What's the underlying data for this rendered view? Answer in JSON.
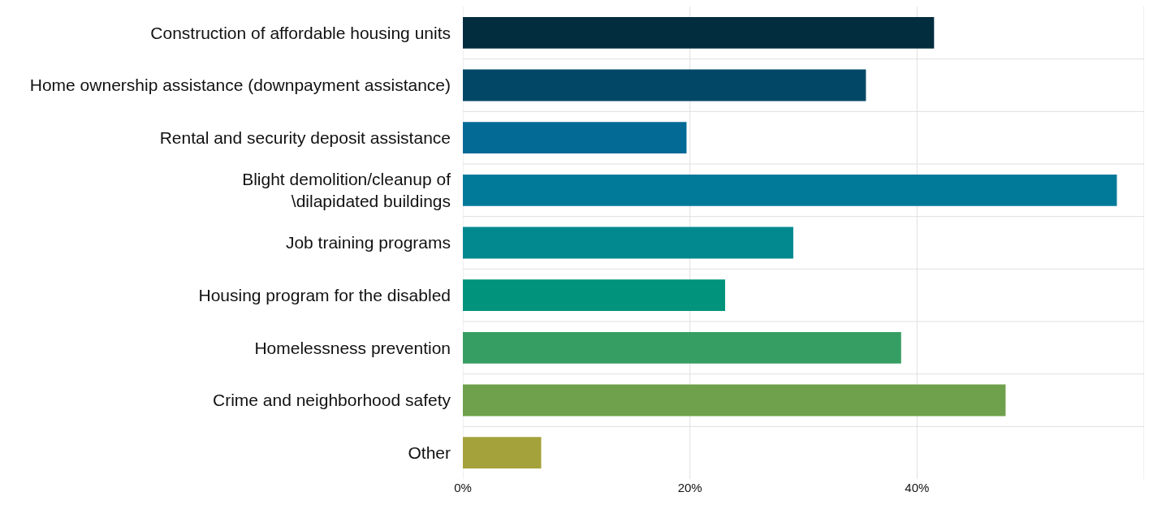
{
  "chart_data": {
    "type": "bar",
    "orientation": "horizontal",
    "categories": [
      "Construction of affordable housing units",
      "Home ownership assistance (downpayment assistance)",
      "Rental and security deposit assistance",
      "Blight demolition/cleanup of\n\\dilapidated buildings",
      "Job training programs",
      "Housing program for the disabled",
      "Homelessness prevention",
      "Crime and neighborhood safety",
      "Other"
    ],
    "values": [
      41.5,
      35.5,
      19.7,
      57.6,
      29.1,
      23.1,
      38.6,
      47.8,
      6.9
    ],
    "colors": [
      "#022d3f",
      "#024866",
      "#036a96",
      "#017a9a",
      "#01898f",
      "#01937c",
      "#379e63",
      "#6fa04b",
      "#a4a23a"
    ],
    "xlim": [
      0,
      60
    ],
    "xticks": [
      {
        "value": 0,
        "label": "0%"
      },
      {
        "value": 20,
        "label": "20%"
      },
      {
        "value": 40,
        "label": "40%"
      },
      {
        "value": 60,
        "label": null
      }
    ],
    "grid": true
  }
}
